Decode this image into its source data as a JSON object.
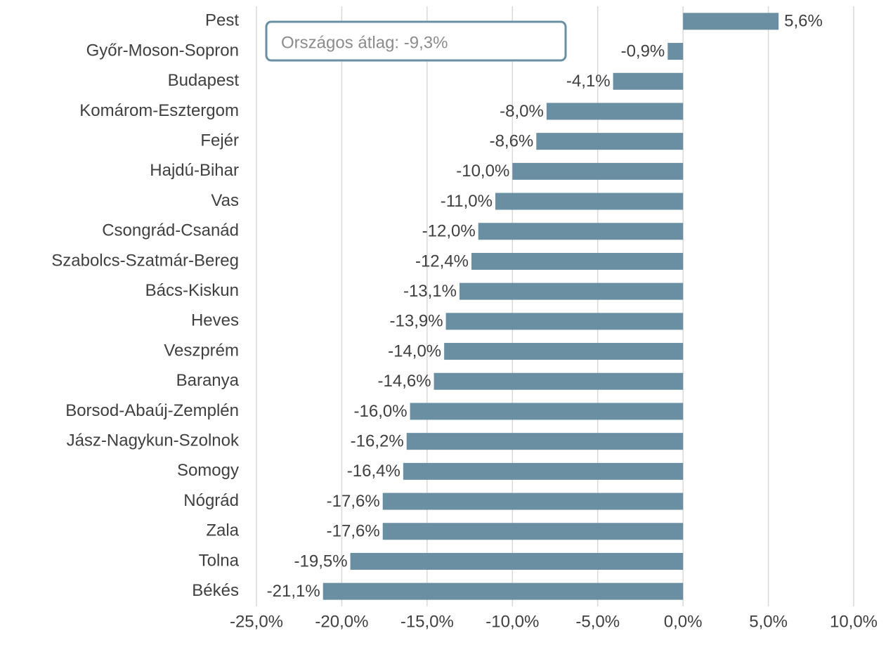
{
  "chart_data": {
    "type": "barh",
    "annotation": "Országos átlag: -9,3%",
    "categories": [
      "Pest",
      "Győr-Moson-Sopron",
      "Budapest",
      "Komárom-Esztergom",
      "Fejér",
      "Hajdú-Bihar",
      "Vas",
      "Csongrád-Csanád",
      "Szabolcs-Szatmár-Bereg",
      "Bács-Kiskun",
      "Heves",
      "Veszprém",
      "Baranya",
      "Borsod-Abaúj-Zemplén",
      "Jász-Nagykun-Szolnok",
      "Somogy",
      "Nógrád",
      "Zala",
      "Tolna",
      "Békés"
    ],
    "values": [
      5.6,
      -0.9,
      -4.1,
      -8.0,
      -8.6,
      -10.0,
      -11.0,
      -12.0,
      -12.4,
      -13.1,
      -13.9,
      -14.0,
      -14.6,
      -16.0,
      -16.2,
      -16.4,
      -17.6,
      -17.6,
      -19.5,
      -21.1
    ],
    "value_labels": [
      "5,6%",
      "-0,9%",
      "-4,1%",
      "-8,0%",
      "-8,6%",
      "-10,0%",
      "-11,0%",
      "-12,0%",
      "-12,4%",
      "-13,1%",
      "-13,9%",
      "-14,0%",
      "-14,6%",
      "-16,0%",
      "-16,2%",
      "-16,4%",
      "-17,6%",
      "-17,6%",
      "-19,5%",
      "-21,1%"
    ],
    "color": "#6a8fa3",
    "xlim": [
      -25,
      10
    ],
    "xticks": [
      {
        "value": -25,
        "label": "-25,0%"
      },
      {
        "value": -20,
        "label": "-20,0%"
      },
      {
        "value": -15,
        "label": "-15,0%"
      },
      {
        "value": -10,
        "label": "-10,0%"
      },
      {
        "value": -5,
        "label": "-5,0%"
      },
      {
        "value": 0,
        "label": "0,0%"
      },
      {
        "value": 5,
        "label": "5,0%"
      },
      {
        "value": 10,
        "label": "10,0%"
      }
    ],
    "grid": true
  }
}
